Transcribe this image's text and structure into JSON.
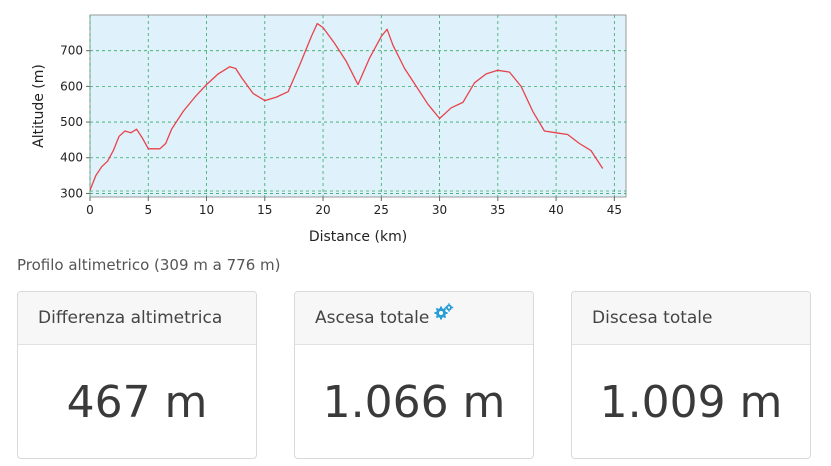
{
  "chart_data": {
    "type": "line",
    "xlabel": "Distance (km)",
    "ylabel": "Altitude (m)",
    "xlim": [
      0,
      46
    ],
    "ylim": [
      290,
      800
    ],
    "xticks": [
      0,
      5,
      10,
      15,
      20,
      25,
      30,
      35,
      40,
      45
    ],
    "yticks": [
      300,
      400,
      500,
      600,
      700
    ],
    "grid": true,
    "colors": {
      "line": "#e8434b",
      "background": "#dff1fb",
      "grid": "#33aa66"
    },
    "series": [
      {
        "x": [
          0,
          0.5,
          1,
          1.5,
          2,
          2.5,
          3,
          3.5,
          4,
          4.5,
          5,
          6,
          6.5,
          7,
          8,
          9,
          10,
          11,
          12,
          12.5,
          13,
          14,
          15,
          16,
          17,
          18,
          19,
          19.5,
          20,
          21,
          22,
          23,
          24,
          25,
          25.5,
          26,
          27,
          28,
          29,
          30,
          31,
          32,
          33,
          34,
          35,
          36,
          37,
          38,
          39,
          40,
          41,
          42,
          43,
          44
        ],
        "y": [
          309,
          350,
          375,
          390,
          420,
          460,
          475,
          470,
          480,
          455,
          425,
          425,
          440,
          480,
          530,
          570,
          605,
          635,
          655,
          650,
          625,
          580,
          560,
          570,
          585,
          660,
          740,
          776,
          765,
          720,
          670,
          605,
          680,
          740,
          760,
          715,
          650,
          600,
          550,
          510,
          540,
          555,
          610,
          635,
          645,
          640,
          600,
          530,
          475,
          470,
          465,
          440,
          420,
          370
        ]
      }
    ]
  },
  "caption": "Profilo altimetrico (309 m a 776 m)",
  "cards": [
    {
      "label": "Differenza altimetrica",
      "value": "467 m"
    },
    {
      "label": "Ascesa totale",
      "value": "1.066 m",
      "icon": "gears-icon"
    },
    {
      "label": "Discesa totale",
      "value": "1.009 m"
    }
  ]
}
